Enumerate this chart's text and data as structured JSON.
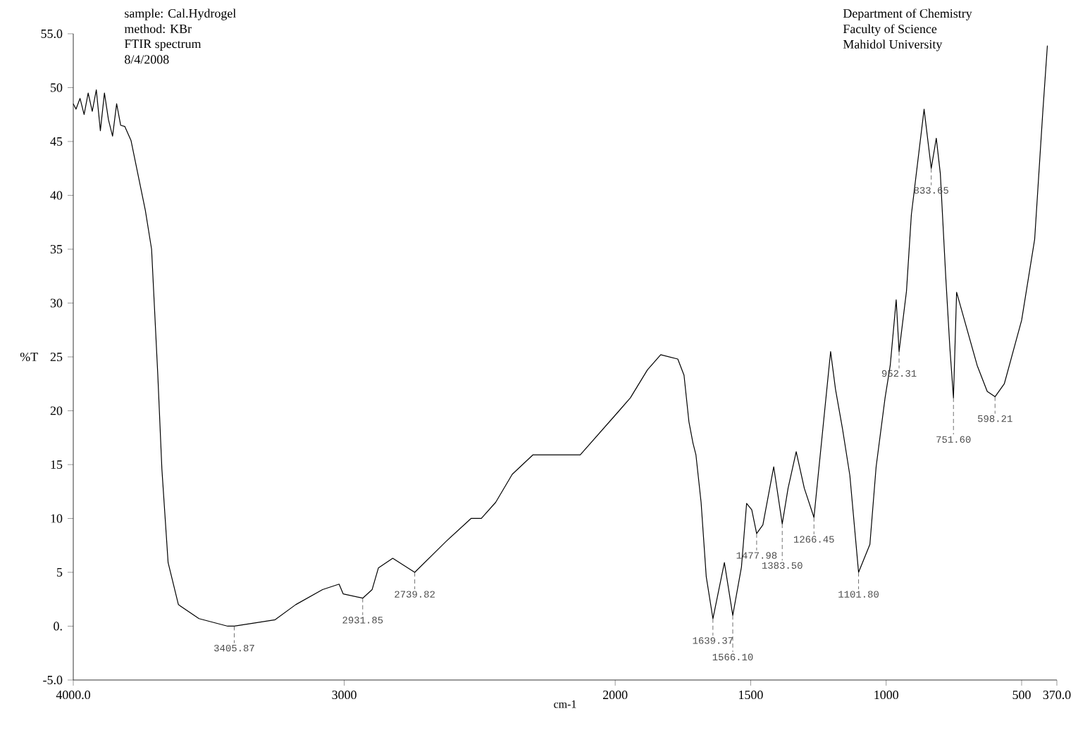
{
  "chart_data": {
    "type": "line",
    "xlabel": "cm-1",
    "ylabel": "%T",
    "xlim": [
      4000,
      370
    ],
    "ylim": [
      -5,
      55
    ],
    "xticks": [
      {
        "value": 4000,
        "label": "4000.0"
      },
      3000,
      2000,
      1500,
      1000,
      500,
      {
        "value": 370,
        "label": "370.0"
      }
    ],
    "yticks": [
      {
        "value": -5,
        "label": "-5.0"
      },
      {
        "value": 0,
        "label": "0."
      },
      5,
      10,
      15,
      20,
      25,
      30,
      35,
      40,
      45,
      50,
      {
        "value": 55,
        "label": "55.0"
      }
    ],
    "marker": "none",
    "line_style": "solid",
    "annotations": [
      "sample: Cal.Hydrogel",
      "method: KBr",
      "FTIR spectrum",
      "8/4/2008",
      "Department of Chemistry",
      "Faculty of Science",
      "Mahidol University",
      {
        "text": "3405.87",
        "x": 3405.87,
        "y": 0
      },
      {
        "text": "2931.85",
        "x": 2931.85,
        "y": 2.6
      },
      {
        "text": "2739.82",
        "x": 2739.82,
        "y": 5
      },
      {
        "text": "1639.37",
        "x": 1639.37,
        "y": 0.7
      },
      {
        "text": "1566.10",
        "x": 1566.1,
        "y": 1
      },
      {
        "text": "1477.98",
        "x": 1477.98,
        "y": 8.6
      },
      {
        "text": "1383.50",
        "x": 1383.5,
        "y": 9.5
      },
      {
        "text": "1266.45",
        "x": 1266.45,
        "y": 10.1
      },
      {
        "text": "1101.80",
        "x": 1101.8,
        "y": 5
      },
      {
        "text": "952.31",
        "x": 952.31,
        "y": 25.5
      },
      {
        "text": "833.65",
        "x": 833.65,
        "y": 42.5
      },
      {
        "text": "751.60",
        "x": 751.6,
        "y": 21.2
      },
      {
        "text": "598.21",
        "x": 598.21,
        "y": 21.3
      }
    ],
    "series": [
      {
        "color": "#000000",
        "x": [
          4000,
          3990,
          3975,
          3960,
          3945,
          3930,
          3915,
          3900,
          3885,
          3870,
          3855,
          3840,
          3825,
          3810,
          3787,
          3734,
          3711,
          3688,
          3673,
          3650,
          3612,
          3536,
          3430,
          3405.87,
          3330,
          3255,
          3179,
          3080,
          3019,
          3004,
          2931.85,
          2897,
          2874,
          2821,
          2739.82,
          2623,
          2532,
          2494,
          2441,
          2380,
          2304,
          2129,
          1989,
          1944,
          1881,
          1832,
          1769,
          1746,
          1728,
          1713,
          1702,
          1683,
          1664,
          1639.37,
          1597,
          1566.1,
          1534,
          1515,
          1496,
          1477.98,
          1455,
          1415,
          1383.5,
          1362,
          1332,
          1302,
          1266.45,
          1205,
          1187,
          1161,
          1134,
          1101.8,
          1060,
          1037,
          1004,
          985,
          963,
          952.31,
          925,
          907,
          860,
          833.65,
          815,
          800,
          780,
          765,
          751.6,
          740,
          664,
          627,
          598.21,
          564,
          500,
          452,
          422,
          405
        ],
        "values": [
          48.5,
          48,
          49,
          47.5,
          49.5,
          47.8,
          49.8,
          46,
          49.5,
          47,
          45.5,
          48.5,
          46.5,
          46.4,
          45.1,
          38.6,
          35,
          23.3,
          14.6,
          5.9,
          2,
          0.7,
          0,
          0,
          0.3,
          0.6,
          2,
          3.4,
          3.9,
          3,
          2.6,
          3.4,
          5.4,
          6.3,
          5,
          7.9,
          10,
          10,
          11.5,
          14.1,
          15.9,
          15.9,
          19.9,
          21.2,
          23.8,
          25.2,
          24.8,
          23.3,
          19,
          17,
          15.9,
          11.5,
          4.6,
          0.7,
          5.9,
          1,
          5.5,
          11.4,
          10.8,
          8.6,
          9.4,
          14.8,
          9.5,
          12.8,
          16.2,
          12.8,
          10.1,
          25.5,
          22,
          18.3,
          14,
          5,
          7.6,
          14.8,
          21.2,
          24.2,
          30.3,
          25.5,
          31.1,
          38.2,
          48,
          42.5,
          45.3,
          42,
          32.4,
          25.9,
          21.2,
          31,
          24.2,
          21.8,
          21.3,
          22.5,
          28.4,
          35.9,
          47.7,
          53.9
        ]
      }
    ]
  }
}
